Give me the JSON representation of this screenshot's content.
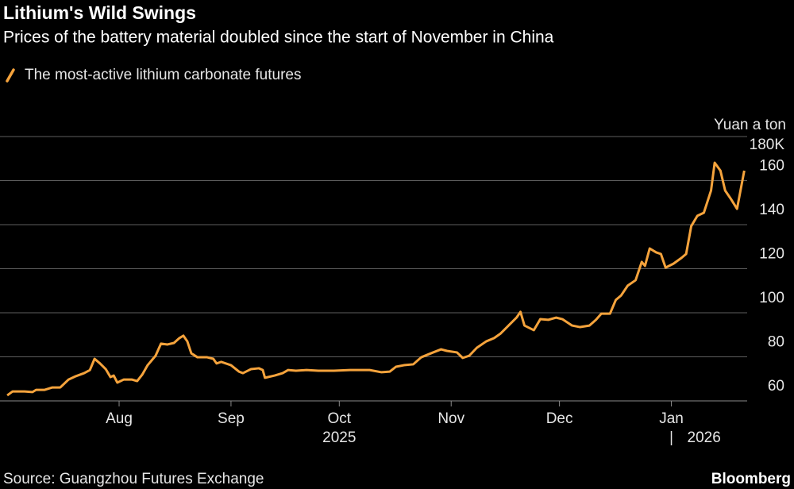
{
  "chart_data": {
    "type": "line",
    "title": "Lithium's Wild Swings",
    "subtitle": "Prices of the battery material doubled since the start of November in China",
    "y_axis_label": "Yuan a ton",
    "source": "Source: Guangzhou Futures Exchange",
    "brand": "Bloomberg",
    "grid": true,
    "legend": "top-left",
    "xlim": [
      -2,
      205
    ],
    "ylim": [
      60,
      180
    ],
    "yticks": [
      60,
      80,
      100,
      120,
      140,
      160,
      {
        "value": 180,
        "label": "180K"
      }
    ],
    "xticks": [
      {
        "value": 31,
        "label": "Aug"
      },
      {
        "value": 62,
        "label": "Sep"
      },
      {
        "value": 92,
        "label": "Oct"
      },
      {
        "value": 123,
        "label": "Nov"
      },
      {
        "value": 153,
        "label": "Dec"
      },
      {
        "value": 184,
        "label": "Jan"
      }
    ],
    "years": [
      "2025",
      "2026"
    ],
    "x": [
      0,
      1.5,
      4.8,
      7,
      8,
      10.3,
      12.5,
      14.7,
      17,
      19,
      21.3,
      22.9,
      24.2,
      25.7,
      27.3,
      28.6,
      29.5,
      30.5,
      32.3,
      34.5,
      36,
      37.4,
      38.9,
      41.1,
      42.6,
      44.4,
      46.2,
      47.7,
      48.8,
      49.9,
      51,
      52.7,
      55.4,
      57.1,
      58,
      59.3,
      62,
      64.2,
      65.3,
      67.5,
      69.7,
      70.8,
      71.4,
      74.1,
      76.3,
      77.8,
      80,
      82.9,
      86.2,
      90.5,
      95,
      100.4,
      103.7,
      106,
      107.7,
      109.9,
      112.5,
      114.7,
      118,
      120.2,
      121.8,
      124.6,
      126.2,
      128,
      130.1,
      132.7,
      134.9,
      136.7,
      138.9,
      141.1,
      142.2,
      143.3,
      145.9,
      147.7,
      149.9,
      152.1,
      153.8,
      156.5,
      158.7,
      161.3,
      163.1,
      164.6,
      167,
      168.6,
      170.1,
      171.9,
      174.1,
      175.8,
      176.7,
      178,
      179.8,
      181.1,
      182.4,
      184.6,
      186.8,
      188.1,
      189.5,
      191.2,
      193,
      195,
      196,
      197.6,
      198.9,
      200.4,
      202.2,
      204.2
    ],
    "series": [
      {
        "name": "The most-active lithium carbonate futures",
        "color": "#f5a33c",
        "values": [
          62.5,
          64.3,
          64.3,
          64,
          65,
          65,
          66.1,
          66.1,
          69.7,
          71.2,
          72.6,
          74,
          79.1,
          77,
          74.4,
          70.8,
          71.5,
          68.3,
          69.7,
          69.7,
          69,
          71.9,
          76.2,
          80.5,
          86,
          85.6,
          86.3,
          88.5,
          89.6,
          87,
          81.6,
          79.8,
          79.8,
          79.1,
          77,
          77.7,
          76.2,
          73.3,
          72.6,
          74.4,
          74.8,
          74,
          70.5,
          71.5,
          72.6,
          74,
          73.7,
          74,
          73.7,
          73.7,
          74,
          74,
          73,
          73.3,
          75.5,
          76.2,
          76.6,
          79.8,
          82,
          83.4,
          82.7,
          82,
          79.5,
          80.5,
          84.1,
          87,
          88.5,
          90.6,
          94.2,
          97.8,
          100.4,
          94.2,
          92.1,
          97.1,
          96.8,
          97.8,
          97.1,
          94.2,
          93.5,
          94.2,
          96.8,
          99.6,
          99.6,
          105.8,
          107.9,
          112.3,
          114.8,
          123.1,
          121.3,
          129.2,
          127.4,
          126.7,
          120.5,
          122.3,
          124.9,
          126.7,
          139.3,
          144,
          145.4,
          155.5,
          168.1,
          164.5,
          155.5,
          151.9,
          147.2,
          164.5
        ]
      }
    ]
  }
}
